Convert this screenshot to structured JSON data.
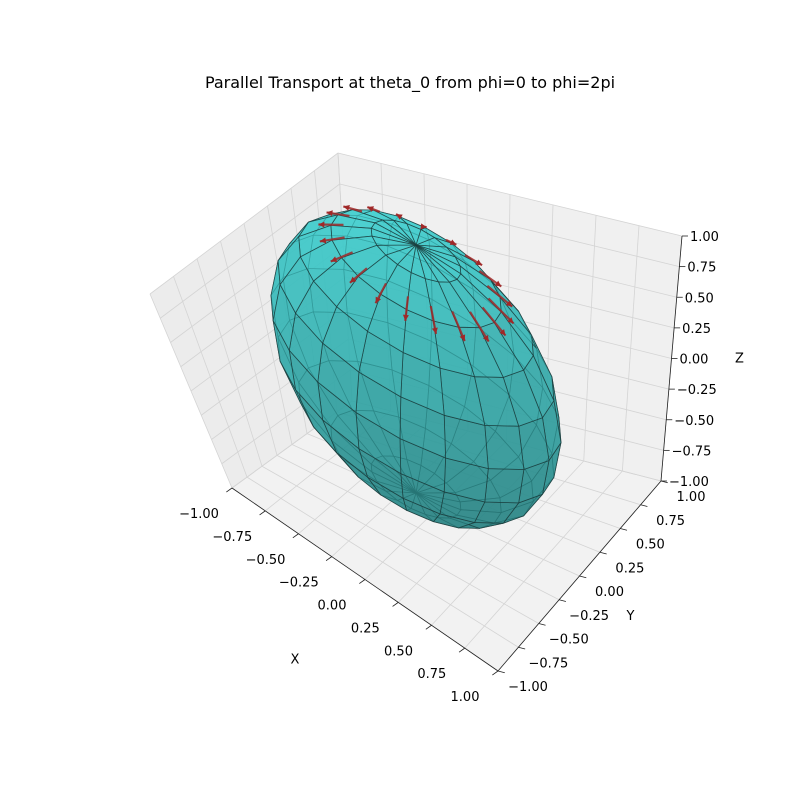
{
  "chart_data": {
    "type": "surface3d",
    "title": "Parallel Transport at theta_0 from phi=0 to phi=2pi",
    "xlabel": "X",
    "ylabel": "Y",
    "zlabel": "Z",
    "xlim": [
      -1,
      1
    ],
    "ylim": [
      -1,
      1
    ],
    "zlim": [
      -1,
      1
    ],
    "x_ticks": [
      "−1.00",
      "−0.75",
      "−0.50",
      "−0.25",
      "0.00",
      "0.25",
      "0.50",
      "0.75",
      "1.00"
    ],
    "y_ticks": [
      "−1.00",
      "−0.75",
      "−0.50",
      "−0.25",
      "0.00",
      "0.25",
      "0.50",
      "0.75",
      "1.00"
    ],
    "z_ticks": [
      "−1.00",
      "−0.75",
      "−0.50",
      "−0.25",
      "0.00",
      "0.25",
      "0.50",
      "0.75",
      "1.00"
    ],
    "grid": true,
    "surface": {
      "shape": "unit sphere",
      "radius": 1,
      "color": "#40d0d0",
      "alpha": 0.5,
      "edge_color": "#1a3a3a",
      "meridians": 20,
      "parallels": 10
    },
    "vectors": {
      "color": "#cc0000",
      "count": 20,
      "theta_0": 0.5236,
      "phi_range": [
        0,
        6.2832
      ],
      "length": 0.2
    }
  }
}
